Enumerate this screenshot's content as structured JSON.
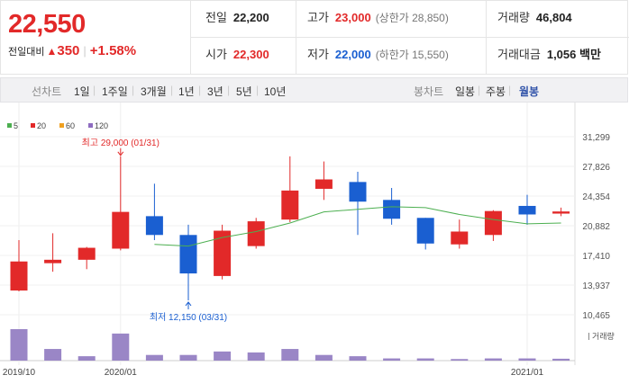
{
  "header": {
    "price": "22,550",
    "prev_label": "전일대비",
    "change": "350",
    "change_pct": "+1.58%",
    "up_color": "#e22929",
    "down_color": "#1a5fd1",
    "prev_close": {
      "label": "전일",
      "value": "22,200"
    },
    "high": {
      "label": "고가",
      "value": "23,000",
      "sub": "(상한가 28,850)"
    },
    "volume": {
      "label": "거래량",
      "value": "46,804"
    },
    "open": {
      "label": "시가",
      "value": "22,300"
    },
    "low": {
      "label": "저가",
      "value": "22,000",
      "sub": "(하한가 15,550)"
    },
    "amount": {
      "label": "거래대금",
      "value": "1,056 백만"
    }
  },
  "toolbar": {
    "line_label": "선차트",
    "periods": [
      "1일",
      "1주일",
      "3개월",
      "1년",
      "3년",
      "5년",
      "10년"
    ],
    "candle_label": "봉차트",
    "candles": [
      "일봉",
      "주봉",
      "월봉"
    ],
    "active_candle": "월봉"
  },
  "chart_data": {
    "type": "candlestick",
    "interval": "monthly",
    "legend": [
      {
        "name": "5",
        "color": "#4caf50"
      },
      {
        "name": "20",
        "color": "#e22929"
      },
      {
        "name": "60",
        "color": "#f0a020"
      },
      {
        "name": "120",
        "color": "#8e6cc0"
      }
    ],
    "y_ticks": [
      "31,299",
      "27,826",
      "24,354",
      "20,882",
      "17,410",
      "13,937",
      "10,465"
    ],
    "ylim": [
      10465,
      31299
    ],
    "x_labels": [
      "2019/10",
      "2020/01",
      "2021/01"
    ],
    "annotations": {
      "high": "최고 29,000 (01/31)",
      "low": "최저 12,150 (03/31)"
    },
    "volume_label": "거래량",
    "candles": [
      {
        "o": 13300,
        "h": 19200,
        "l": 13200,
        "c": 16700
      },
      {
        "o": 16500,
        "h": 20000,
        "l": 15500,
        "c": 16900
      },
      {
        "o": 16900,
        "h": 18400,
        "l": 15800,
        "c": 18300
      },
      {
        "o": 18200,
        "h": 29000,
        "l": 18000,
        "c": 22500
      },
      {
        "o": 22000,
        "h": 25800,
        "l": 19200,
        "c": 19800
      },
      {
        "o": 19800,
        "h": 21000,
        "l": 12150,
        "c": 15300
      },
      {
        "o": 15000,
        "h": 21000,
        "l": 14600,
        "c": 20300
      },
      {
        "o": 18500,
        "h": 21800,
        "l": 18200,
        "c": 21400
      },
      {
        "o": 21600,
        "h": 29000,
        "l": 21300,
        "c": 25000
      },
      {
        "o": 25200,
        "h": 28400,
        "l": 23900,
        "c": 26300
      },
      {
        "o": 26000,
        "h": 27200,
        "l": 19800,
        "c": 23700
      },
      {
        "o": 23900,
        "h": 25300,
        "l": 21000,
        "c": 21700
      },
      {
        "o": 21800,
        "h": 21800,
        "l": 18100,
        "c": 18800
      },
      {
        "o": 18700,
        "h": 21600,
        "l": 18200,
        "c": 20200
      },
      {
        "o": 19800,
        "h": 22700,
        "l": 19100,
        "c": 22600
      },
      {
        "o": 23200,
        "h": 24500,
        "l": 21000,
        "c": 22200
      },
      {
        "o": 22300,
        "h": 23000,
        "l": 22000,
        "c": 22550
      }
    ],
    "ma5": [
      null,
      null,
      null,
      null,
      18700,
      18500,
      19500,
      20200,
      21200,
      22500,
      22800,
      23100,
      23000,
      22200,
      21600,
      21100,
      21200
    ],
    "volume_rel": [
      1.0,
      0.37,
      0.14,
      0.86,
      0.18,
      0.18,
      0.29,
      0.26,
      0.37,
      0.18,
      0.14,
      0.07,
      0.07,
      0.05,
      0.07,
      0.07,
      0.06
    ]
  }
}
